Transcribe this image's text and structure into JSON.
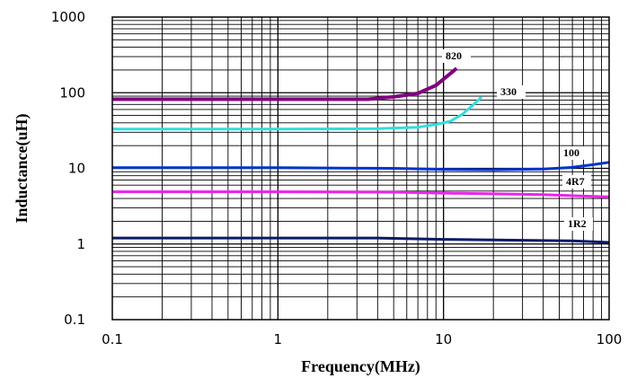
{
  "chart_data": {
    "type": "line",
    "title": "",
    "xlabel": "Frequency(MHz)",
    "ylabel": "Inductance(uH)",
    "xscale": "log",
    "yscale": "log",
    "xlim": [
      0.1,
      100
    ],
    "ylim": [
      0.1,
      1000
    ],
    "grid": true,
    "legend": "none",
    "x_tick_labels": [
      "0.1",
      "1",
      "10",
      "100"
    ],
    "y_tick_labels": [
      "0.1",
      "1",
      "10",
      "100",
      "1000"
    ],
    "series": [
      {
        "name": "820",
        "color": "#800080",
        "points": [
          [
            0.1,
            82
          ],
          [
            1,
            82
          ],
          [
            3.5,
            82
          ],
          [
            5,
            88
          ],
          [
            7,
            98
          ],
          [
            9,
            125
          ],
          [
            10.5,
            165
          ],
          [
            12,
            210
          ]
        ]
      },
      {
        "name": "330",
        "color": "#33dddd",
        "points": [
          [
            0.1,
            33
          ],
          [
            1,
            33
          ],
          [
            4,
            33.5
          ],
          [
            7,
            35
          ],
          [
            9,
            38
          ],
          [
            11,
            42
          ],
          [
            13,
            52
          ],
          [
            15,
            68
          ],
          [
            17,
            88
          ]
        ]
      },
      {
        "name": "100",
        "color": "#0033cc",
        "points": [
          [
            0.1,
            10.2
          ],
          [
            1,
            10.2
          ],
          [
            5,
            10
          ],
          [
            10,
            9.7
          ],
          [
            20,
            9.6
          ],
          [
            40,
            9.8
          ],
          [
            60,
            10.3
          ],
          [
            80,
            11.2
          ],
          [
            100,
            12
          ]
        ]
      },
      {
        "name": "4R7",
        "color": "#ee22ee",
        "points": [
          [
            0.1,
            4.9
          ],
          [
            1,
            4.9
          ],
          [
            5,
            4.85
          ],
          [
            10,
            4.7
          ],
          [
            20,
            4.6
          ],
          [
            40,
            4.5
          ],
          [
            70,
            4.3
          ],
          [
            100,
            4.2
          ]
        ]
      },
      {
        "name": "1R2",
        "color": "#0a1a66",
        "points": [
          [
            0.1,
            1.2
          ],
          [
            1,
            1.2
          ],
          [
            4,
            1.2
          ],
          [
            10,
            1.15
          ],
          [
            30,
            1.12
          ],
          [
            60,
            1.1
          ],
          [
            100,
            1.05
          ]
        ]
      }
    ]
  }
}
